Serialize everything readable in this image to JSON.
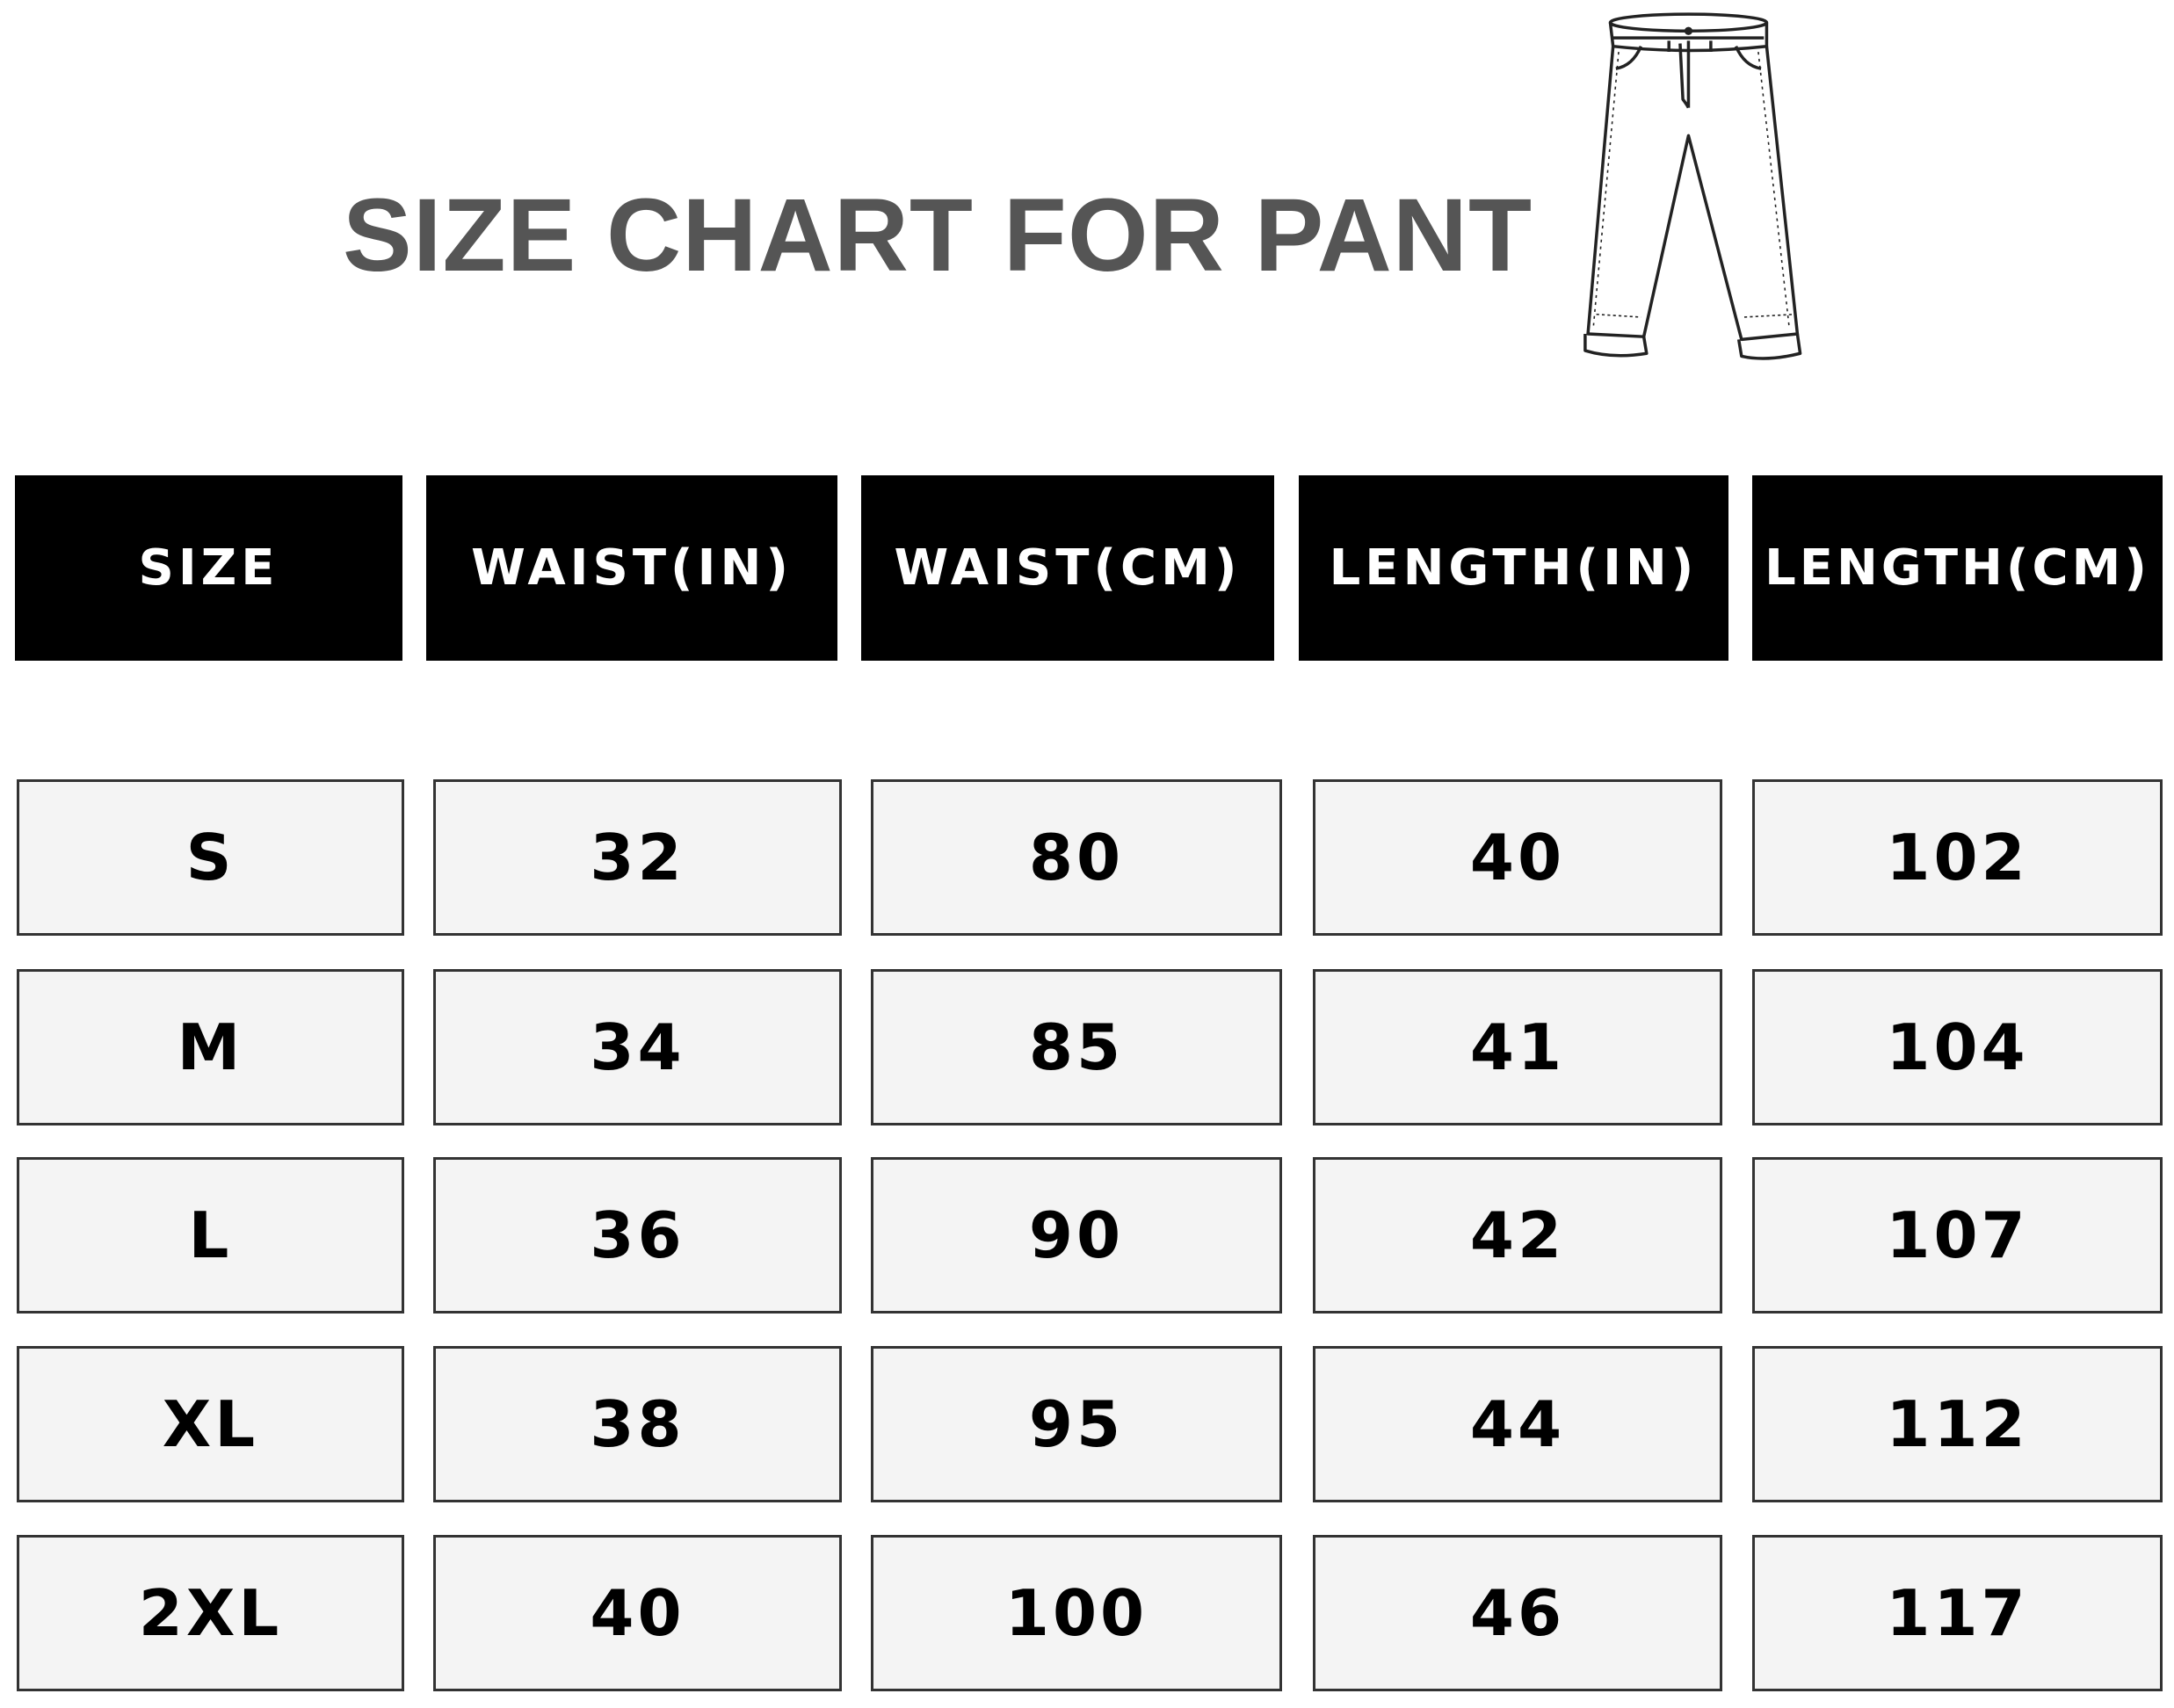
{
  "title": "SIZE CHART FOR PANT",
  "illustration": "pants-icon",
  "table": {
    "headers": [
      "SIZE",
      "WAIST(IN)",
      "WAIST(CM)",
      "LENGTH(IN)",
      "LENGTH(CM)"
    ],
    "rows": [
      [
        "S",
        "32",
        "80",
        "40",
        "102"
      ],
      [
        "M",
        "34",
        "85",
        "41",
        "104"
      ],
      [
        "L",
        "36",
        "90",
        "42",
        "107"
      ],
      [
        "XL",
        "38",
        "95",
        "44",
        "112"
      ],
      [
        "2XL",
        "40",
        "100",
        "46",
        "117"
      ]
    ]
  },
  "colors": {
    "header_bg": "#000000",
    "cell_bg": "#f4f4f4",
    "title": "#555555"
  }
}
